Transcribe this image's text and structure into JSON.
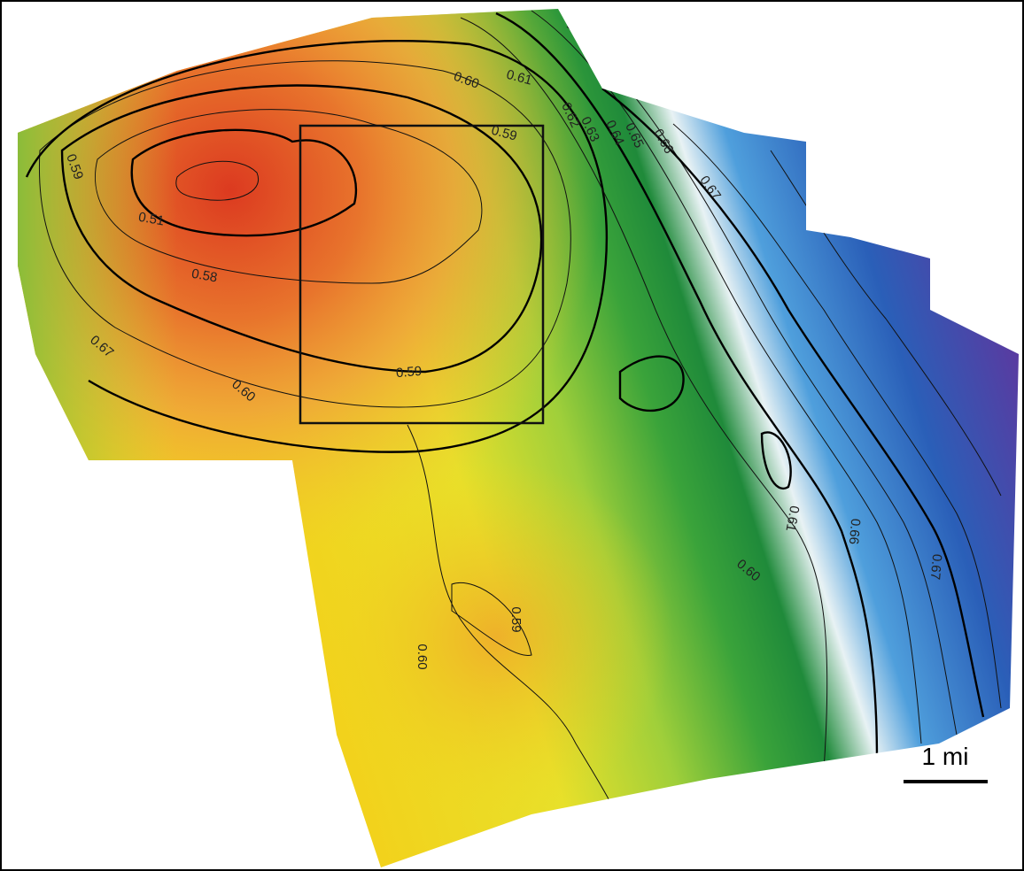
{
  "contour_labels": [
    "0.60",
    "0.61",
    "0.59",
    "0.62",
    "0.63",
    "0.64",
    "0.65",
    "0.66",
    "0.59",
    "0.51",
    "0.58",
    "0.67",
    "0.67",
    "0.60",
    "0.59",
    "0.61",
    "0.66",
    "0.60",
    "0.59",
    "0.60",
    "0.67"
  ],
  "scale_bar": "1 mi"
}
